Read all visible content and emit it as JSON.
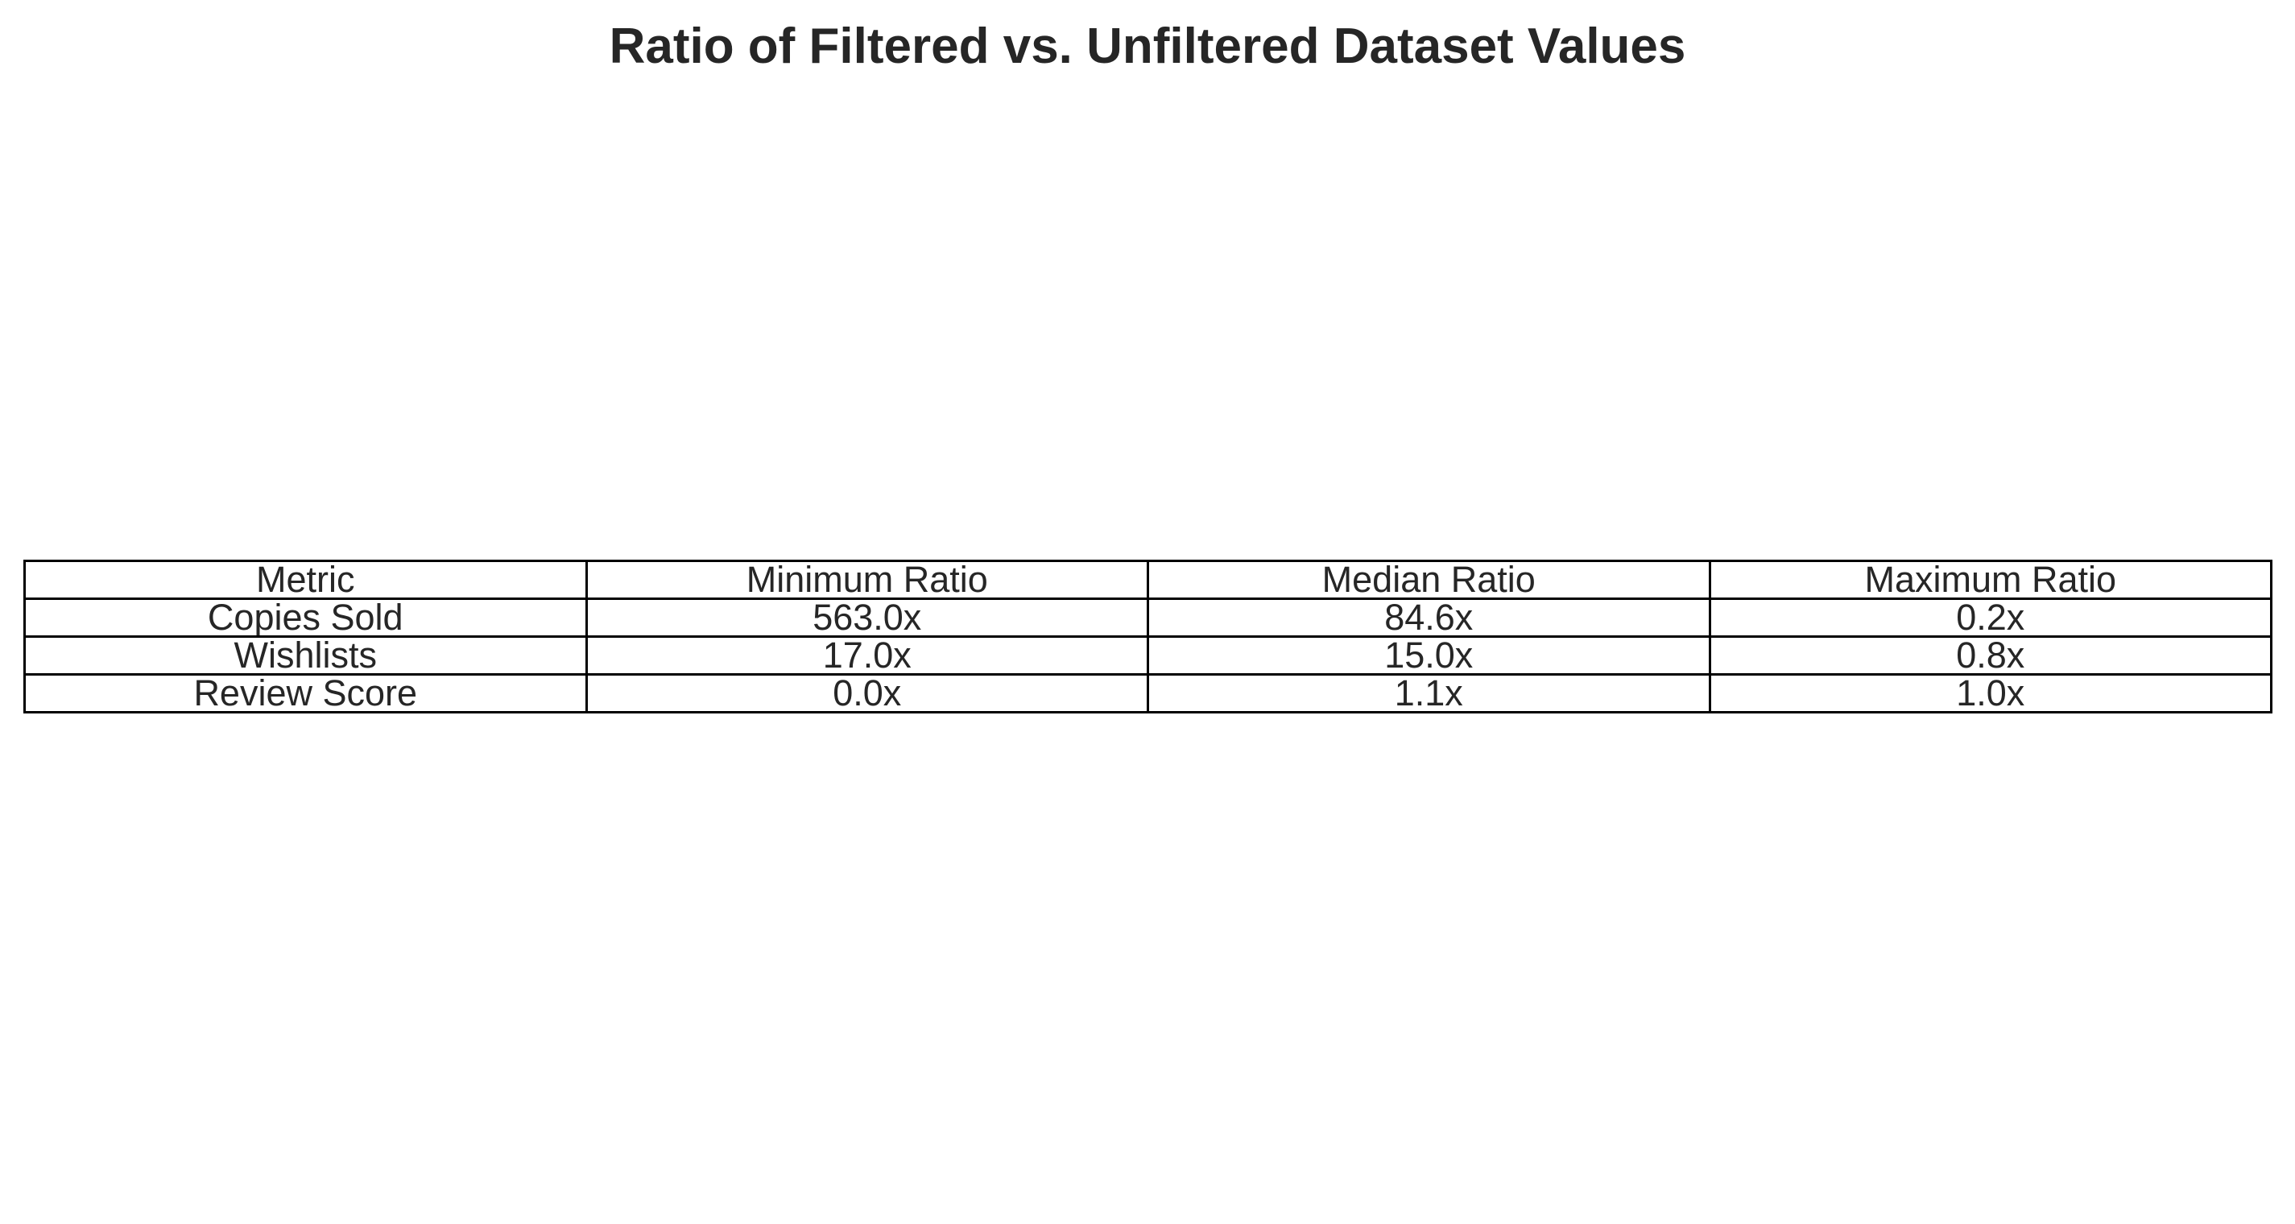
{
  "chart_data": {
    "type": "table",
    "title": "Ratio of Filtered vs. Unfiltered Dataset Values",
    "columns": [
      "Metric",
      "Minimum Ratio",
      "Median Ratio",
      "Maximum Ratio"
    ],
    "rows": [
      [
        "Copies Sold",
        "563.0x",
        "84.6x",
        "0.2x"
      ],
      [
        "Wishlists",
        "17.0x",
        "15.0x",
        "0.8x"
      ],
      [
        "Review Score",
        "0.0x",
        "1.1x",
        "1.0x"
      ]
    ]
  }
}
